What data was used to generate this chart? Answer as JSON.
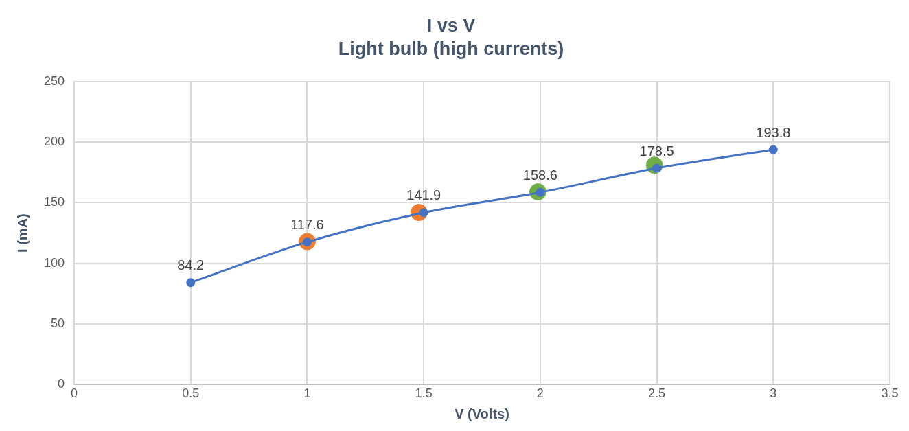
{
  "chart_data": {
    "type": "scatter",
    "title": "I vs V",
    "subtitle": "Light bulb (high currents)",
    "xlabel": "V (Volts)",
    "ylabel": "I (mA)",
    "xlim": [
      0,
      3.5
    ],
    "xticks": [
      0,
      0.5,
      1,
      1.5,
      2,
      2.5,
      3,
      3.5
    ],
    "ylim": [
      0,
      250
    ],
    "yticks": [
      0,
      50,
      100,
      150,
      200,
      250
    ],
    "grid": true,
    "legend": false,
    "series": [
      {
        "type": "line",
        "color": "#4472c4",
        "marker": "circle",
        "x": [
          0.5,
          1,
          1.5,
          2,
          2.5,
          3
        ],
        "values": [
          84.2,
          117.6,
          141.9,
          158.6,
          178.5,
          193.8
        ],
        "value_labels": [
          "84.2",
          "117.6",
          "141.9",
          "158.6",
          "178.5",
          "193.8"
        ]
      },
      {
        "color": "#ed7d31",
        "marker": "circle",
        "x": [
          1.0,
          1.48
        ],
        "values": [
          118,
          142
        ]
      },
      {
        "color": "#70ad47",
        "marker": "circle",
        "x": [
          1.99,
          2.49
        ],
        "values": [
          159,
          181
        ]
      }
    ]
  }
}
